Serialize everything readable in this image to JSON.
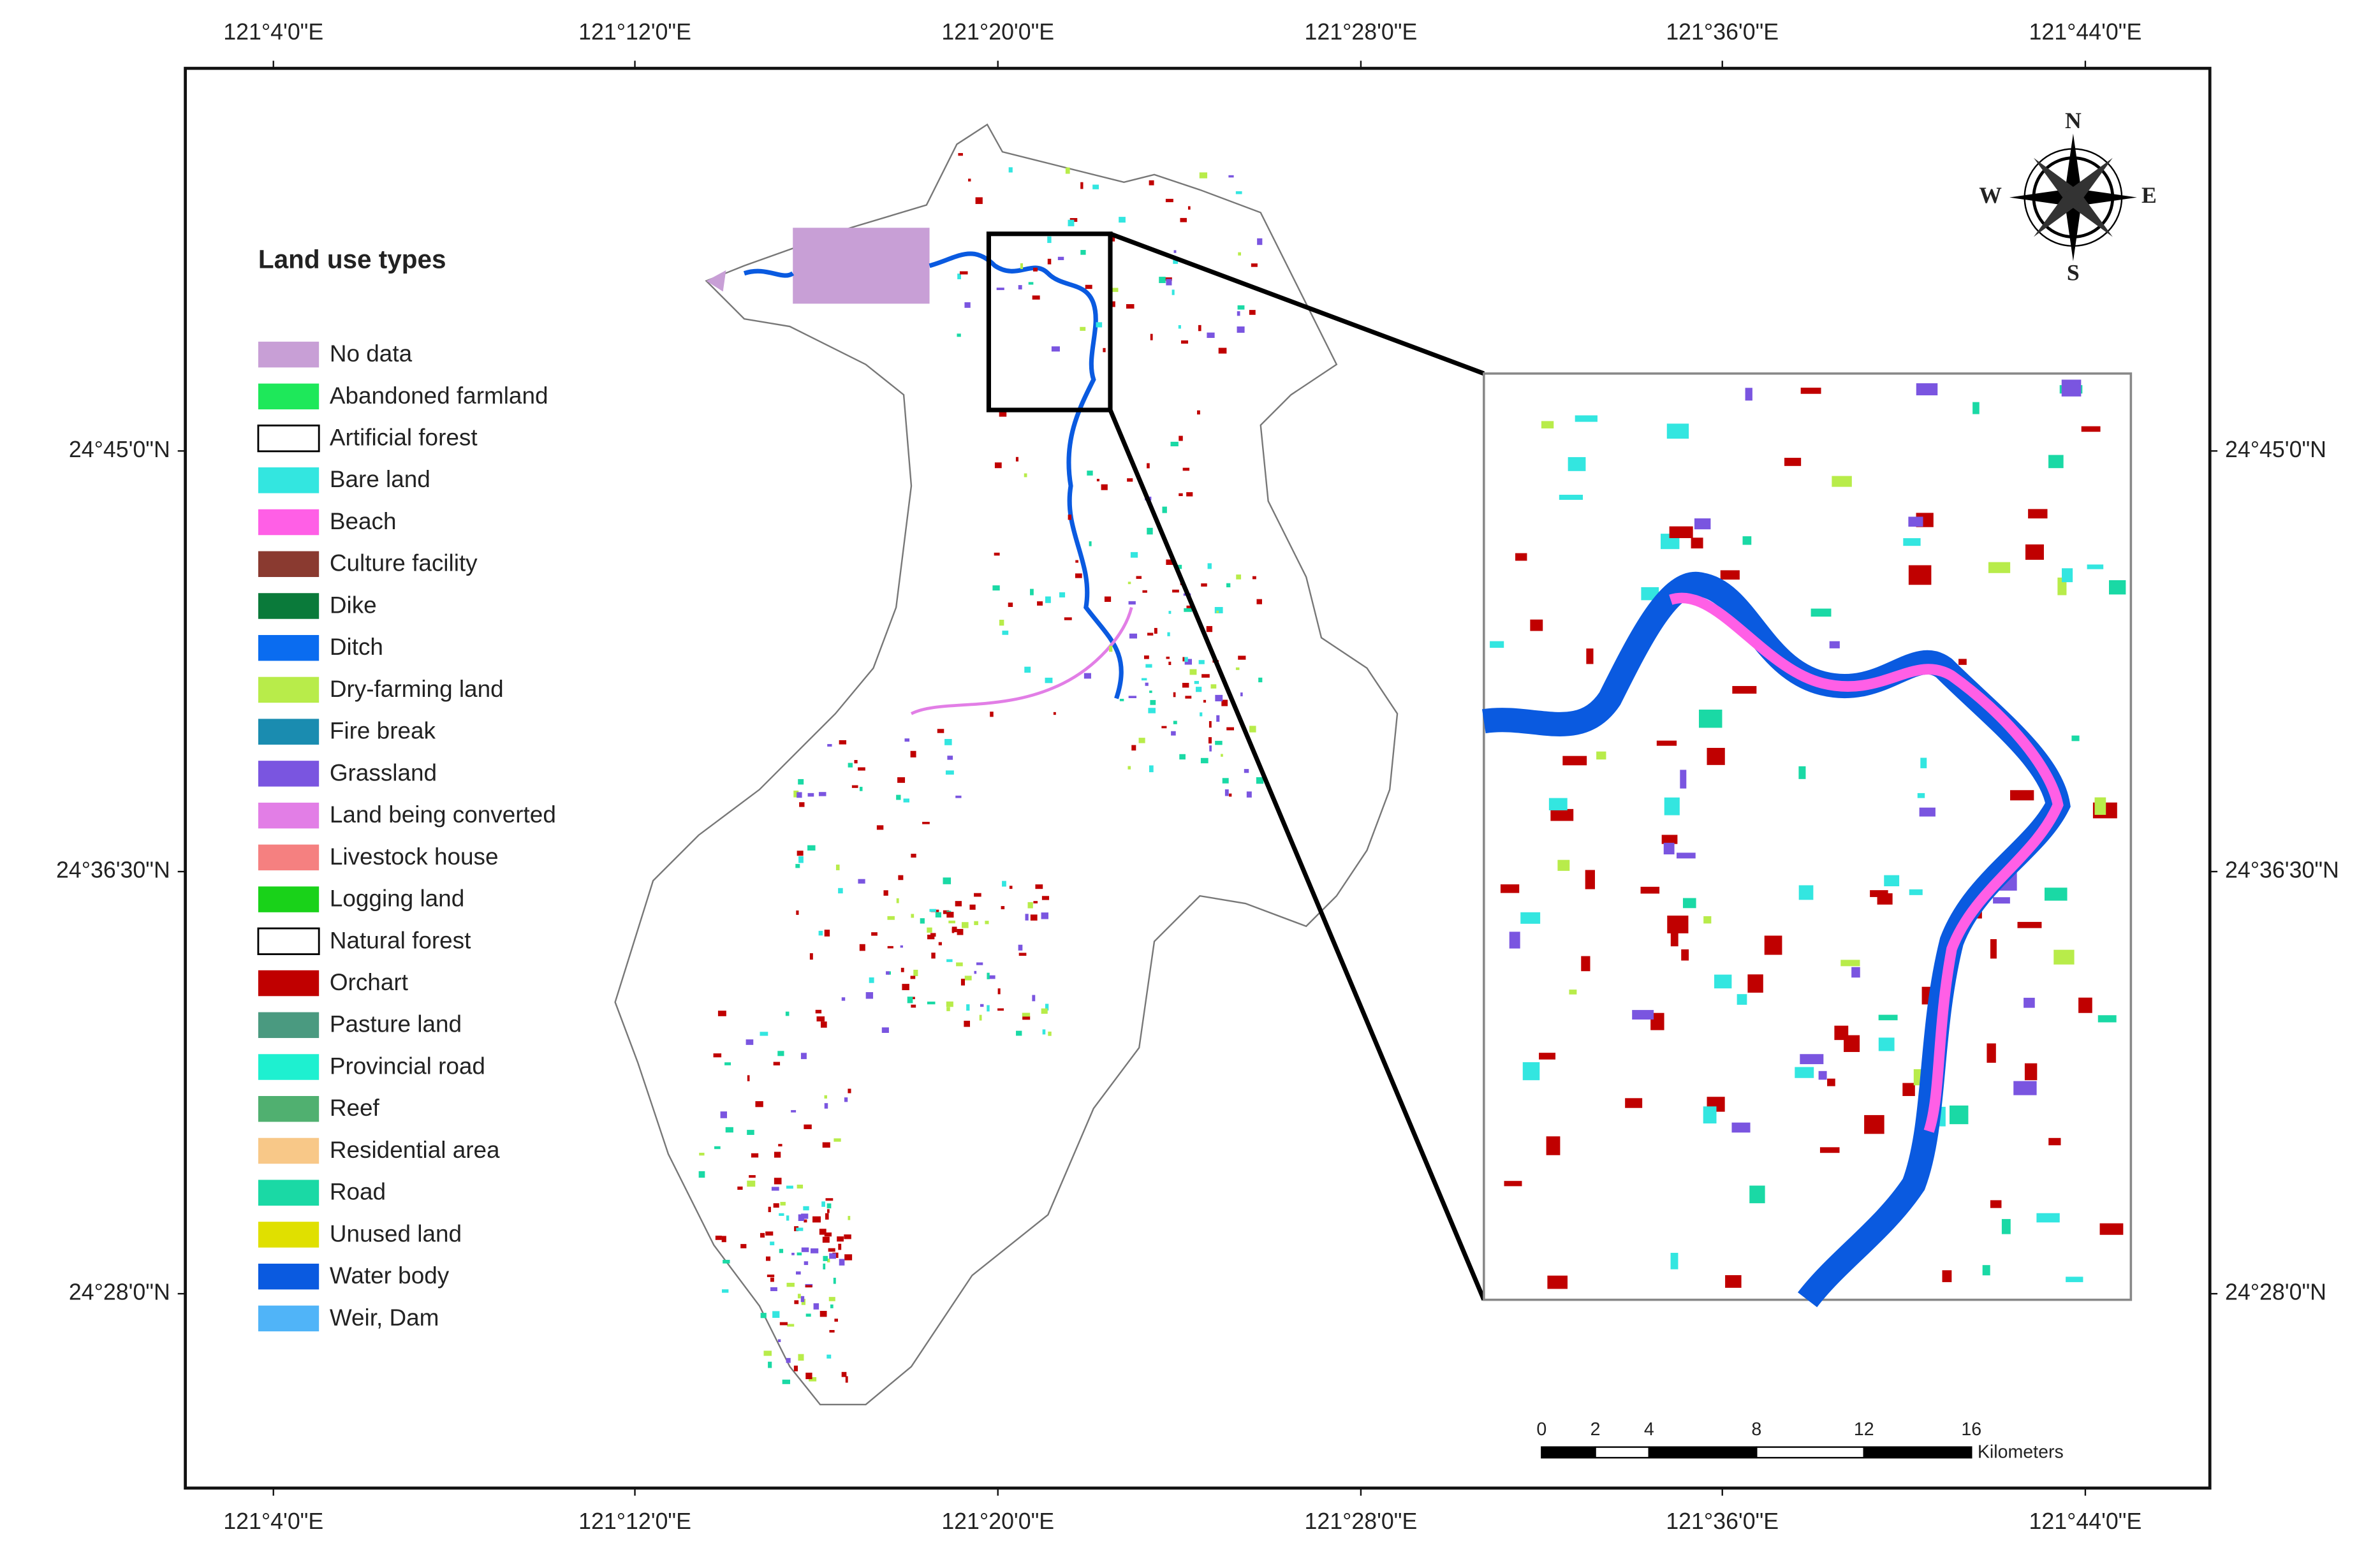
{
  "map": {
    "top_labels": [
      "121°4'0\"E",
      "121°12'0\"E",
      "121°20'0\"E",
      "121°28'0\"E",
      "121°36'0\"E",
      "121°44'0\"E"
    ],
    "bottom_labels": [
      "121°4'0\"E",
      "121°12'0\"E",
      "121°20'0\"E",
      "121°28'0\"E",
      "121°36'0\"E",
      "121°44'0\"E"
    ],
    "left_labels": [
      "24°45'0\"N",
      "24°36'30\"N",
      "24°28'0\"N"
    ],
    "right_labels": [
      "24°45'0\"N",
      "24°36'30\"N",
      "24°28'0\"N"
    ],
    "legend": {
      "title": "Land use types",
      "items": [
        {
          "label": "No data",
          "color": "#c89fd6"
        },
        {
          "label": "Abandoned farmland",
          "color": "#1ee85a"
        },
        {
          "label": "Artificial forest",
          "color": "#ffffff"
        },
        {
          "label": "Bare land",
          "color": "#33e6e0"
        },
        {
          "label": "Beach",
          "color": "#ff5fe6"
        },
        {
          "label": "Culture facility",
          "color": "#8a3a30"
        },
        {
          "label": "Dike",
          "color": "#0a7a3a"
        },
        {
          "label": "Ditch",
          "color": "#0a6cf0"
        },
        {
          "label": "Dry-farming land",
          "color": "#b8ec4a"
        },
        {
          "label": "Fire break",
          "color": "#1a8cb0"
        },
        {
          "label": "Grassland",
          "color": "#7a55e0"
        },
        {
          "label": "Land being converted",
          "color": "#e27ee6"
        },
        {
          "label": "Livestock house",
          "color": "#f58080"
        },
        {
          "label": "Logging land",
          "color": "#19d219"
        },
        {
          "label": "Natural forest",
          "color": "#ffffff"
        },
        {
          "label": "Orchart",
          "color": "#c00000"
        },
        {
          "label": "Pasture land",
          "color": "#4a9a80"
        },
        {
          "label": "Provincial road",
          "color": "#1ef0d0"
        },
        {
          "label": "Reef",
          "color": "#50b070"
        },
        {
          "label": "Residential area",
          "color": "#f8c888"
        },
        {
          "label": "Road",
          "color": "#1ad9a5"
        },
        {
          "label": "Unused land",
          "color": "#e0e000"
        },
        {
          "label": "Water body",
          "color": "#0a5ae0"
        },
        {
          "label": "Weir, Dam",
          "color": "#50b4f8"
        }
      ]
    },
    "compass": {
      "n": "N",
      "e": "E",
      "s": "S",
      "w": "W"
    },
    "scale_bar": {
      "ticks": [
        0,
        2,
        4,
        8,
        12,
        16
      ],
      "unit": "Kilometers"
    }
  }
}
